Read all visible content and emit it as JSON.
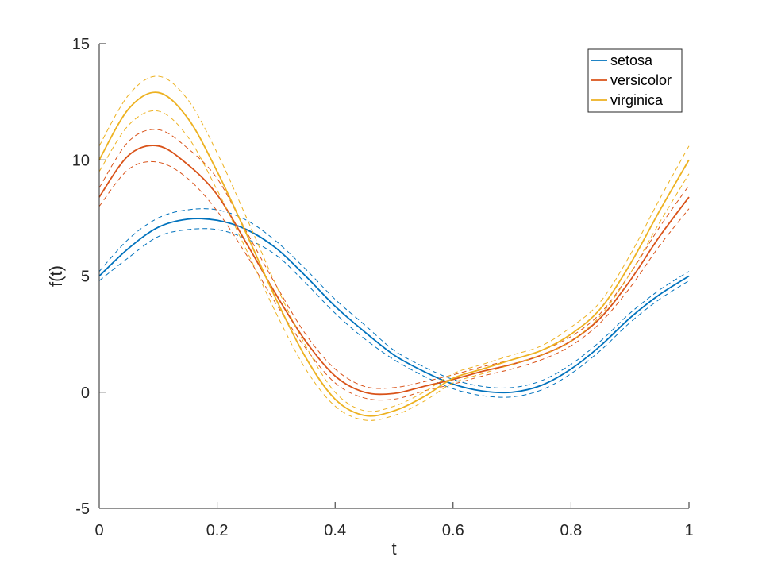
{
  "chart_data": {
    "type": "line",
    "xlabel": "t",
    "ylabel": "f(t)",
    "xlim": [
      0,
      1
    ],
    "ylim": [
      -5,
      15
    ],
    "xticks": [
      0,
      0.2,
      0.4,
      0.6,
      0.8,
      1
    ],
    "xtick_labels": [
      "0",
      "0.2",
      "0.4",
      "0.6",
      "0.8",
      "1"
    ],
    "yticks": [
      -5,
      0,
      5,
      10,
      15
    ],
    "ytick_labels": [
      "-5",
      "0",
      "5",
      "10",
      "15"
    ],
    "grid": false,
    "legend_position": "top-right",
    "x": [
      0,
      0.05,
      0.1,
      0.15,
      0.2,
      0.25,
      0.3,
      0.35,
      0.4,
      0.45,
      0.5,
      0.55,
      0.6,
      0.65,
      0.7,
      0.75,
      0.8,
      0.85,
      0.9,
      0.95,
      1.0
    ],
    "series": [
      {
        "name": "setosa",
        "color": "#0072BD",
        "values": [
          5.0,
          6.2,
          7.1,
          7.45,
          7.4,
          7.0,
          6.2,
          5.0,
          3.7,
          2.6,
          1.6,
          0.9,
          0.35,
          0.05,
          0.0,
          0.3,
          1.0,
          2.0,
          3.2,
          4.2,
          5.0
        ],
        "ci_lower": [
          4.8,
          5.8,
          6.7,
          7.0,
          7.0,
          6.6,
          5.9,
          4.7,
          3.4,
          2.3,
          1.4,
          0.7,
          0.15,
          -0.15,
          -0.2,
          0.1,
          0.8,
          1.8,
          3.0,
          4.0,
          4.8
        ],
        "ci_upper": [
          5.2,
          6.6,
          7.5,
          7.85,
          7.85,
          7.4,
          6.5,
          5.3,
          4.0,
          2.9,
          1.8,
          1.1,
          0.55,
          0.25,
          0.2,
          0.5,
          1.2,
          2.2,
          3.4,
          4.4,
          5.2
        ]
      },
      {
        "name": "versicolor",
        "color": "#D95319",
        "values": [
          8.4,
          10.2,
          10.6,
          9.8,
          8.5,
          6.4,
          4.2,
          2.2,
          0.7,
          0.0,
          -0.05,
          0.25,
          0.55,
          0.9,
          1.2,
          1.6,
          2.2,
          3.2,
          4.8,
          6.7,
          8.4
        ],
        "ci_lower": [
          8.0,
          9.6,
          9.9,
          9.2,
          7.8,
          5.9,
          3.8,
          1.9,
          0.4,
          -0.25,
          -0.3,
          0.05,
          0.35,
          0.7,
          1.0,
          1.4,
          2.0,
          3.0,
          4.5,
          6.3,
          7.9
        ],
        "ci_upper": [
          8.8,
          10.8,
          11.3,
          10.5,
          9.2,
          6.9,
          4.6,
          2.5,
          1.0,
          0.25,
          0.2,
          0.45,
          0.75,
          1.1,
          1.4,
          1.8,
          2.4,
          3.4,
          5.1,
          7.1,
          8.9
        ]
      },
      {
        "name": "virginica",
        "color": "#EDB120",
        "values": [
          10.0,
          12.2,
          12.9,
          11.8,
          9.5,
          6.8,
          4.0,
          1.5,
          -0.3,
          -1.0,
          -0.8,
          -0.2,
          0.6,
          1.0,
          1.4,
          1.8,
          2.5,
          3.6,
          5.5,
          7.8,
          10.0
        ],
        "ci_lower": [
          9.5,
          11.5,
          12.1,
          11.0,
          8.7,
          6.1,
          3.4,
          1.0,
          -0.6,
          -1.2,
          -1.0,
          -0.4,
          0.4,
          0.8,
          1.2,
          1.6,
          2.2,
          3.3,
          5.1,
          7.3,
          9.4
        ],
        "ci_upper": [
          10.6,
          12.8,
          13.6,
          12.6,
          10.3,
          7.5,
          4.6,
          2.0,
          0.0,
          -0.8,
          -0.6,
          0.0,
          0.8,
          1.2,
          1.6,
          2.0,
          2.8,
          3.9,
          5.9,
          8.3,
          10.6
        ]
      }
    ]
  }
}
